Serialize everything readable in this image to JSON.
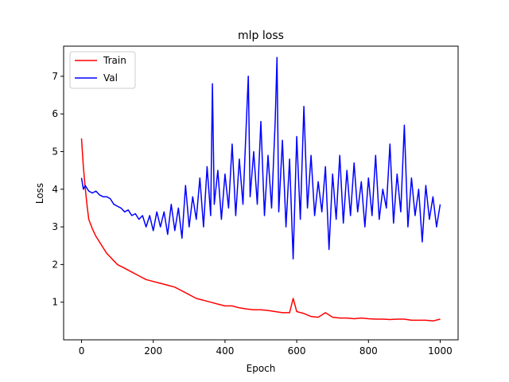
{
  "chart_data": {
    "type": "line",
    "title": "mlp loss",
    "xlabel": "Epoch",
    "ylabel": "Loss",
    "xlim": [
      -50,
      1050
    ],
    "ylim": [
      0.0,
      7.8
    ],
    "xticks": [
      0,
      200,
      400,
      600,
      800,
      1000
    ],
    "yticks": [
      1,
      2,
      3,
      4,
      5,
      6,
      7
    ],
    "grid": false,
    "legend_position": "upper-left",
    "series": [
      {
        "name": "Train",
        "color": "#ff0000",
        "x": [
          0,
          5,
          10,
          15,
          20,
          30,
          40,
          50,
          60,
          70,
          80,
          90,
          100,
          120,
          140,
          160,
          180,
          200,
          220,
          240,
          260,
          280,
          300,
          320,
          340,
          360,
          380,
          400,
          420,
          440,
          460,
          480,
          500,
          520,
          540,
          560,
          580,
          590,
          600,
          620,
          640,
          660,
          680,
          700,
          720,
          740,
          760,
          780,
          800,
          820,
          840,
          860,
          880,
          900,
          920,
          940,
          960,
          980,
          1000
        ],
        "y": [
          5.35,
          4.6,
          4.05,
          3.6,
          3.2,
          2.95,
          2.75,
          2.6,
          2.45,
          2.3,
          2.2,
          2.1,
          2.0,
          1.9,
          1.8,
          1.7,
          1.6,
          1.55,
          1.5,
          1.45,
          1.4,
          1.3,
          1.2,
          1.1,
          1.05,
          1.0,
          0.95,
          0.9,
          0.9,
          0.85,
          0.82,
          0.8,
          0.8,
          0.78,
          0.75,
          0.72,
          0.72,
          1.1,
          0.75,
          0.7,
          0.62,
          0.6,
          0.72,
          0.6,
          0.58,
          0.58,
          0.56,
          0.58,
          0.56,
          0.55,
          0.55,
          0.54,
          0.55,
          0.55,
          0.52,
          0.52,
          0.52,
          0.5,
          0.55
        ]
      },
      {
        "name": "Val",
        "color": "#0000ff",
        "x": [
          0,
          5,
          10,
          20,
          30,
          40,
          50,
          60,
          70,
          80,
          90,
          100,
          110,
          120,
          130,
          140,
          150,
          160,
          170,
          180,
          190,
          200,
          210,
          220,
          230,
          240,
          250,
          260,
          270,
          280,
          290,
          300,
          310,
          320,
          330,
          340,
          350,
          360,
          365,
          370,
          380,
          390,
          400,
          410,
          420,
          430,
          440,
          450,
          460,
          465,
          470,
          480,
          490,
          500,
          510,
          520,
          530,
          540,
          545,
          550,
          560,
          570,
          580,
          590,
          600,
          610,
          620,
          630,
          640,
          650,
          660,
          670,
          680,
          690,
          700,
          710,
          720,
          730,
          740,
          750,
          760,
          770,
          780,
          790,
          800,
          810,
          820,
          830,
          840,
          850,
          860,
          870,
          880,
          890,
          900,
          910,
          920,
          930,
          940,
          950,
          960,
          970,
          980,
          990,
          1000
        ],
        "y": [
          4.3,
          4.0,
          4.1,
          3.95,
          3.9,
          3.95,
          3.85,
          3.8,
          3.8,
          3.75,
          3.6,
          3.55,
          3.5,
          3.4,
          3.45,
          3.3,
          3.35,
          3.2,
          3.3,
          3.0,
          3.3,
          2.9,
          3.4,
          3.0,
          3.4,
          2.8,
          3.6,
          2.9,
          3.5,
          2.7,
          4.1,
          3.0,
          3.8,
          3.2,
          4.3,
          3.0,
          4.6,
          3.3,
          6.8,
          3.6,
          4.5,
          3.2,
          4.4,
          3.5,
          5.2,
          3.3,
          4.8,
          3.6,
          5.9,
          7.0,
          3.8,
          5.0,
          3.6,
          5.8,
          3.3,
          4.9,
          3.5,
          5.8,
          7.5,
          3.4,
          5.3,
          3.0,
          4.8,
          2.15,
          5.4,
          3.2,
          6.2,
          3.5,
          4.9,
          3.3,
          4.2,
          3.4,
          4.6,
          2.4,
          4.4,
          3.2,
          4.9,
          3.1,
          4.5,
          3.3,
          4.7,
          3.4,
          4.2,
          3.0,
          4.3,
          3.3,
          4.9,
          3.2,
          4.0,
          3.5,
          5.2,
          3.1,
          4.4,
          3.4,
          5.7,
          3.0,
          4.3,
          3.3,
          4.0,
          2.6,
          4.1,
          3.2,
          3.8,
          3.0,
          3.6
        ]
      }
    ]
  }
}
